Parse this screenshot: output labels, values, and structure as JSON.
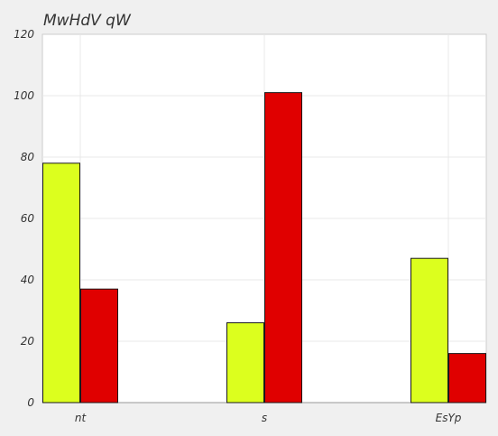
{
  "chart_data": {
    "type": "bar",
    "title": "MwHdV qW",
    "categories": [
      "nt",
      "s",
      "EsYp"
    ],
    "series": [
      {
        "values": [
          78,
          26,
          47
        ],
        "color": "#dcff1e"
      },
      {
        "values": [
          37,
          101,
          16
        ],
        "color": "#e00000"
      }
    ],
    "ylim": [
      0,
      120
    ],
    "yticks": [
      0,
      20,
      40,
      60,
      80,
      100,
      120
    ],
    "grid": true
  }
}
